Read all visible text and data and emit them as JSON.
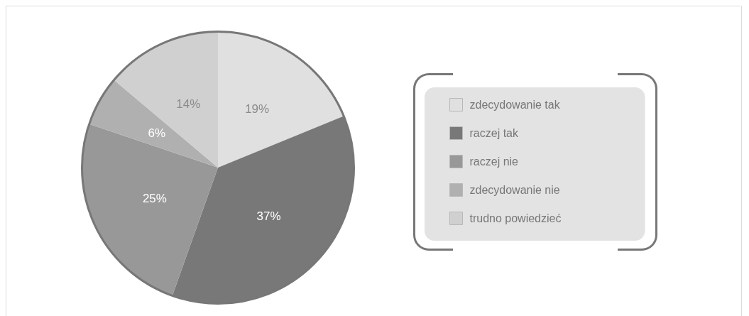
{
  "chart_data": {
    "type": "pie",
    "categories": [
      "zdecydowanie tak",
      "raczej tak",
      "raczej nie",
      "zdecydowanie nie",
      "trudno powiedzieć"
    ],
    "values": [
      19,
      37,
      25,
      6,
      14
    ],
    "colors": [
      "#e0e0e0",
      "#787878",
      "#989898",
      "#b0b0b0",
      "#d0d0d0"
    ],
    "value_labels": [
      "19%",
      "37%",
      "25%",
      "6%",
      "14%"
    ],
    "legend": "right"
  }
}
